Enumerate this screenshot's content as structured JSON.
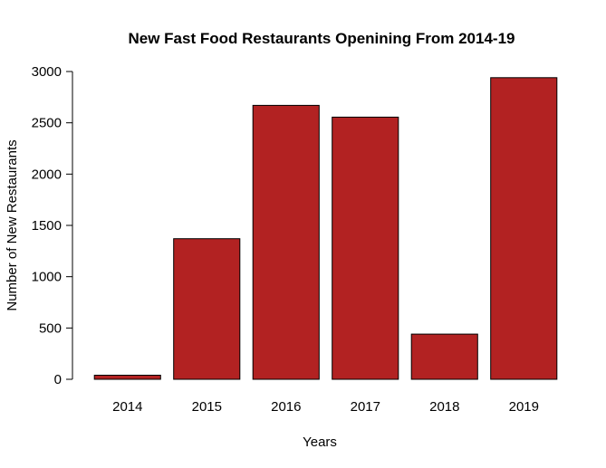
{
  "chart_data": {
    "type": "bar",
    "title": "New Fast Food Restaurants Openining From 2014-19",
    "xlabel": "Years",
    "ylabel": "Number of New Restaurants",
    "categories": [
      "2014",
      "2015",
      "2016",
      "2017",
      "2018",
      "2019"
    ],
    "values": [
      40,
      1370,
      2670,
      2555,
      440,
      2940
    ],
    "ylim": [
      0,
      3000
    ],
    "yticks": [
      0,
      500,
      1000,
      1500,
      2000,
      2500,
      3000
    ],
    "bar_color": "#b22222",
    "bar_edge_color": "#000000",
    "grid": false
  }
}
